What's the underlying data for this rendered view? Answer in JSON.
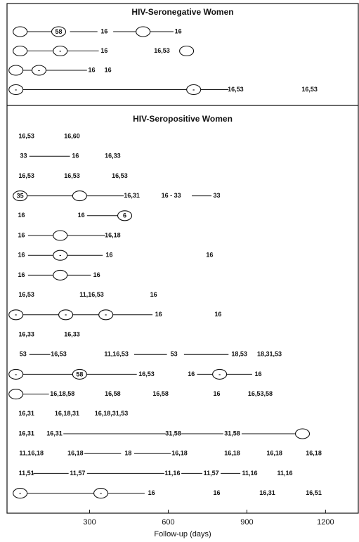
{
  "chart_data": {
    "type": "timeline",
    "xlabel": "Follow-up (days)",
    "xlim": [
      -15,
      1325
    ],
    "xticks": [
      300,
      600,
      900,
      1200
    ],
    "panels": [
      {
        "title": "HIV-Seronegative Women",
        "rows": [
          {
            "events": [
              {
                "x": 35,
                "marker": "oval"
              },
              {
                "x": 182,
                "marker": "oval",
                "text": "58"
              },
              {
                "x": 356,
                "label": "16"
              },
              {
                "x": 504,
                "marker": "oval"
              },
              {
                "x": 638,
                "label": "16"
              }
            ],
            "lines": [
              [
                55,
                160
              ],
              [
                225,
                330
              ],
              [
                390,
                480
              ],
              [
                530,
                620
              ]
            ]
          },
          {
            "events": [
              {
                "x": 35,
                "marker": "oval"
              },
              {
                "x": 188,
                "marker": "oval",
                "text": "-"
              },
              {
                "x": 356,
                "label": "16"
              },
              {
                "x": 576,
                "label": "16,53"
              },
              {
                "x": 670,
                "marker": "oval"
              }
            ],
            "lines": [
              [
                55,
                165
              ],
              [
                210,
                335
              ]
            ]
          },
          {
            "events": [
              {
                "x": 19,
                "marker": "oval"
              },
              {
                "x": 107,
                "marker": "oval",
                "text": "-"
              },
              {
                "x": 308,
                "label": "16"
              },
              {
                "x": 370,
                "label": "16"
              }
            ],
            "lines": [
              [
                40,
                85
              ],
              [
                130,
                290
              ]
            ]
          },
          {
            "events": [
              {
                "x": 19,
                "marker": "oval",
                "text": "-"
              },
              {
                "x": 697,
                "marker": "oval",
                "text": "-"
              },
              {
                "x": 857,
                "label": "16,53"
              },
              {
                "x": 1139,
                "label": "16,53"
              }
            ],
            "lines": [
              [
                40,
                675
              ],
              [
                720,
                830
              ]
            ]
          }
        ]
      },
      {
        "title": "HIV-Seropositive Women",
        "rows": [
          {
            "events": [
              {
                "x": 59,
                "label": "16,53"
              },
              {
                "x": 233,
                "label": "16,60"
              }
            ],
            "lines": []
          },
          {
            "events": [
              {
                "x": 48,
                "label": "33"
              },
              {
                "x": 246,
                "label": "16"
              },
              {
                "x": 388,
                "label": "16,33"
              }
            ],
            "lines": [
              [
                70,
                225
              ]
            ]
          },
          {
            "events": [
              {
                "x": 59,
                "label": "16,53"
              },
              {
                "x": 233,
                "label": "16,53"
              },
              {
                "x": 415,
                "label": "16,53"
              }
            ],
            "lines": []
          },
          {
            "events": [
              {
                "x": 35,
                "marker": "oval",
                "text": "35"
              },
              {
                "x": 262,
                "marker": "oval"
              },
              {
                "x": 461,
                "label": "16,31"
              },
              {
                "x": 611,
                "label": "16 - 33"
              },
              {
                "x": 785,
                "label": "33"
              }
            ],
            "lines": [
              [
                60,
                240
              ],
              [
                285,
                430
              ],
              [
                690,
                765
              ]
            ]
          },
          {
            "events": [
              {
                "x": 40,
                "label": "16"
              },
              {
                "x": 268,
                "label": "16"
              },
              {
                "x": 434,
                "marker": "oval",
                "text": "6"
              }
            ],
            "lines": [
              [
                290,
                415
              ]
            ]
          },
          {
            "events": [
              {
                "x": 40,
                "label": "16"
              },
              {
                "x": 188,
                "marker": "oval"
              },
              {
                "x": 388,
                "label": "16,18"
              }
            ],
            "lines": [
              [
                65,
                165
              ],
              [
                210,
                360
              ]
            ]
          },
          {
            "events": [
              {
                "x": 40,
                "label": "16"
              },
              {
                "x": 188,
                "marker": "oval",
                "text": "-"
              },
              {
                "x": 375,
                "label": "16"
              },
              {
                "x": 758,
                "label": "16"
              }
            ],
            "lines": [
              [
                65,
                165
              ],
              [
                210,
                350
              ]
            ]
          },
          {
            "events": [
              {
                "x": 40,
                "label": "16"
              },
              {
                "x": 188,
                "marker": "oval"
              },
              {
                "x": 327,
                "label": "16"
              }
            ],
            "lines": [
              [
                65,
                165
              ],
              [
                210,
                305
              ]
            ]
          },
          {
            "events": [
              {
                "x": 59,
                "label": "16,53"
              },
              {
                "x": 308,
                "label": "11,16,53"
              },
              {
                "x": 544,
                "label": "16"
              }
            ],
            "lines": []
          },
          {
            "events": [
              {
                "x": 19,
                "marker": "oval",
                "text": "-"
              },
              {
                "x": 209,
                "marker": "oval",
                "text": "-"
              },
              {
                "x": 362,
                "marker": "oval",
                "text": "-"
              },
              {
                "x": 563,
                "label": "16"
              },
              {
                "x": 790,
                "label": "16"
              }
            ],
            "lines": [
              [
                40,
                185
              ],
              [
                230,
                340
              ],
              [
                385,
                540
              ]
            ]
          },
          {
            "events": [
              {
                "x": 59,
                "label": "16,33"
              },
              {
                "x": 233,
                "label": "16,33"
              }
            ],
            "lines": []
          },
          {
            "events": [
              {
                "x": 46,
                "label": "53"
              },
              {
                "x": 182,
                "label": "16,53"
              },
              {
                "x": 402,
                "label": "11,16,53"
              },
              {
                "x": 622,
                "label": "53"
              },
              {
                "x": 871,
                "label": "18,53"
              },
              {
                "x": 986,
                "label": "18,31,53"
              }
            ],
            "lines": [
              [
                70,
                150
              ],
              [
                470,
                595
              ],
              [
                660,
                830
              ]
            ]
          },
          {
            "events": [
              {
                "x": 19,
                "marker": "oval",
                "text": "-"
              },
              {
                "x": 262,
                "marker": "oval",
                "text": "58"
              },
              {
                "x": 517,
                "label": "16,53"
              },
              {
                "x": 688,
                "label": "16"
              },
              {
                "x": 796,
                "marker": "oval",
                "text": "-"
              },
              {
                "x": 943,
                "label": "16"
              }
            ],
            "lines": [
              [
                40,
                240
              ],
              [
                285,
                480
              ],
              [
                710,
                775
              ],
              [
                820,
                920
              ]
            ]
          },
          {
            "events": [
              {
                "x": 19,
                "marker": "oval"
              },
              {
                "x": 196,
                "label": "16,18,58"
              },
              {
                "x": 388,
                "label": "16,58"
              },
              {
                "x": 571,
                "label": "16,58"
              },
              {
                "x": 785,
                "label": "16"
              },
              {
                "x": 951,
                "label": "16,53,58"
              }
            ],
            "lines": [
              [
                40,
                145
              ]
            ]
          },
          {
            "events": [
              {
                "x": 59,
                "label": "16,31"
              },
              {
                "x": 214,
                "label": "16,18,31"
              },
              {
                "x": 383,
                "label": "16,18,31,53"
              }
            ],
            "lines": []
          },
          {
            "events": [
              {
                "x": 59,
                "label": "16,31"
              },
              {
                "x": 166,
                "label": "16,31"
              },
              {
                "x": 619,
                "label": "31,58"
              },
              {
                "x": 844,
                "label": "31,58"
              },
              {
                "x": 1112,
                "marker": "oval"
              }
            ],
            "lines": [
              [
                200,
                590
              ],
              [
                650,
                810
              ],
              [
                880,
                1090
              ]
            ]
          },
          {
            "events": [
              {
                "x": 78,
                "label": "11,16,18"
              },
              {
                "x": 246,
                "label": "16,18"
              },
              {
                "x": 447,
                "label": "18"
              },
              {
                "x": 643,
                "label": "16,18"
              },
              {
                "x": 844,
                "label": "16,18"
              },
              {
                "x": 1005,
                "label": "16,18"
              },
              {
                "x": 1155,
                "label": "16,18"
              }
            ],
            "lines": [
              [
                280,
                420
              ],
              [
                470,
                610
              ]
            ]
          },
          {
            "events": [
              {
                "x": 59,
                "label": "11,51"
              },
              {
                "x": 254,
                "label": "11,57"
              },
              {
                "x": 616,
                "label": "11,16"
              },
              {
                "x": 764,
                "label": "11,57"
              },
              {
                "x": 911,
                "label": "11,16"
              },
              {
                "x": 1045,
                "label": "11,16"
              }
            ],
            "lines": [
              [
                85,
                220
              ],
              [
                290,
                585
              ],
              [
                650,
                730
              ],
              [
                800,
                875
              ]
            ]
          },
          {
            "events": [
              {
                "x": 35,
                "marker": "oval",
                "text": "-"
              },
              {
                "x": 343,
                "marker": "oval",
                "text": "-"
              },
              {
                "x": 536,
                "label": "16"
              },
              {
                "x": 785,
                "label": "16"
              },
              {
                "x": 978,
                "label": "16,31"
              },
              {
                "x": 1155,
                "label": "16,51"
              }
            ],
            "lines": [
              [
                55,
                320
              ],
              [
                365,
                510
              ]
            ]
          }
        ]
      }
    ]
  }
}
